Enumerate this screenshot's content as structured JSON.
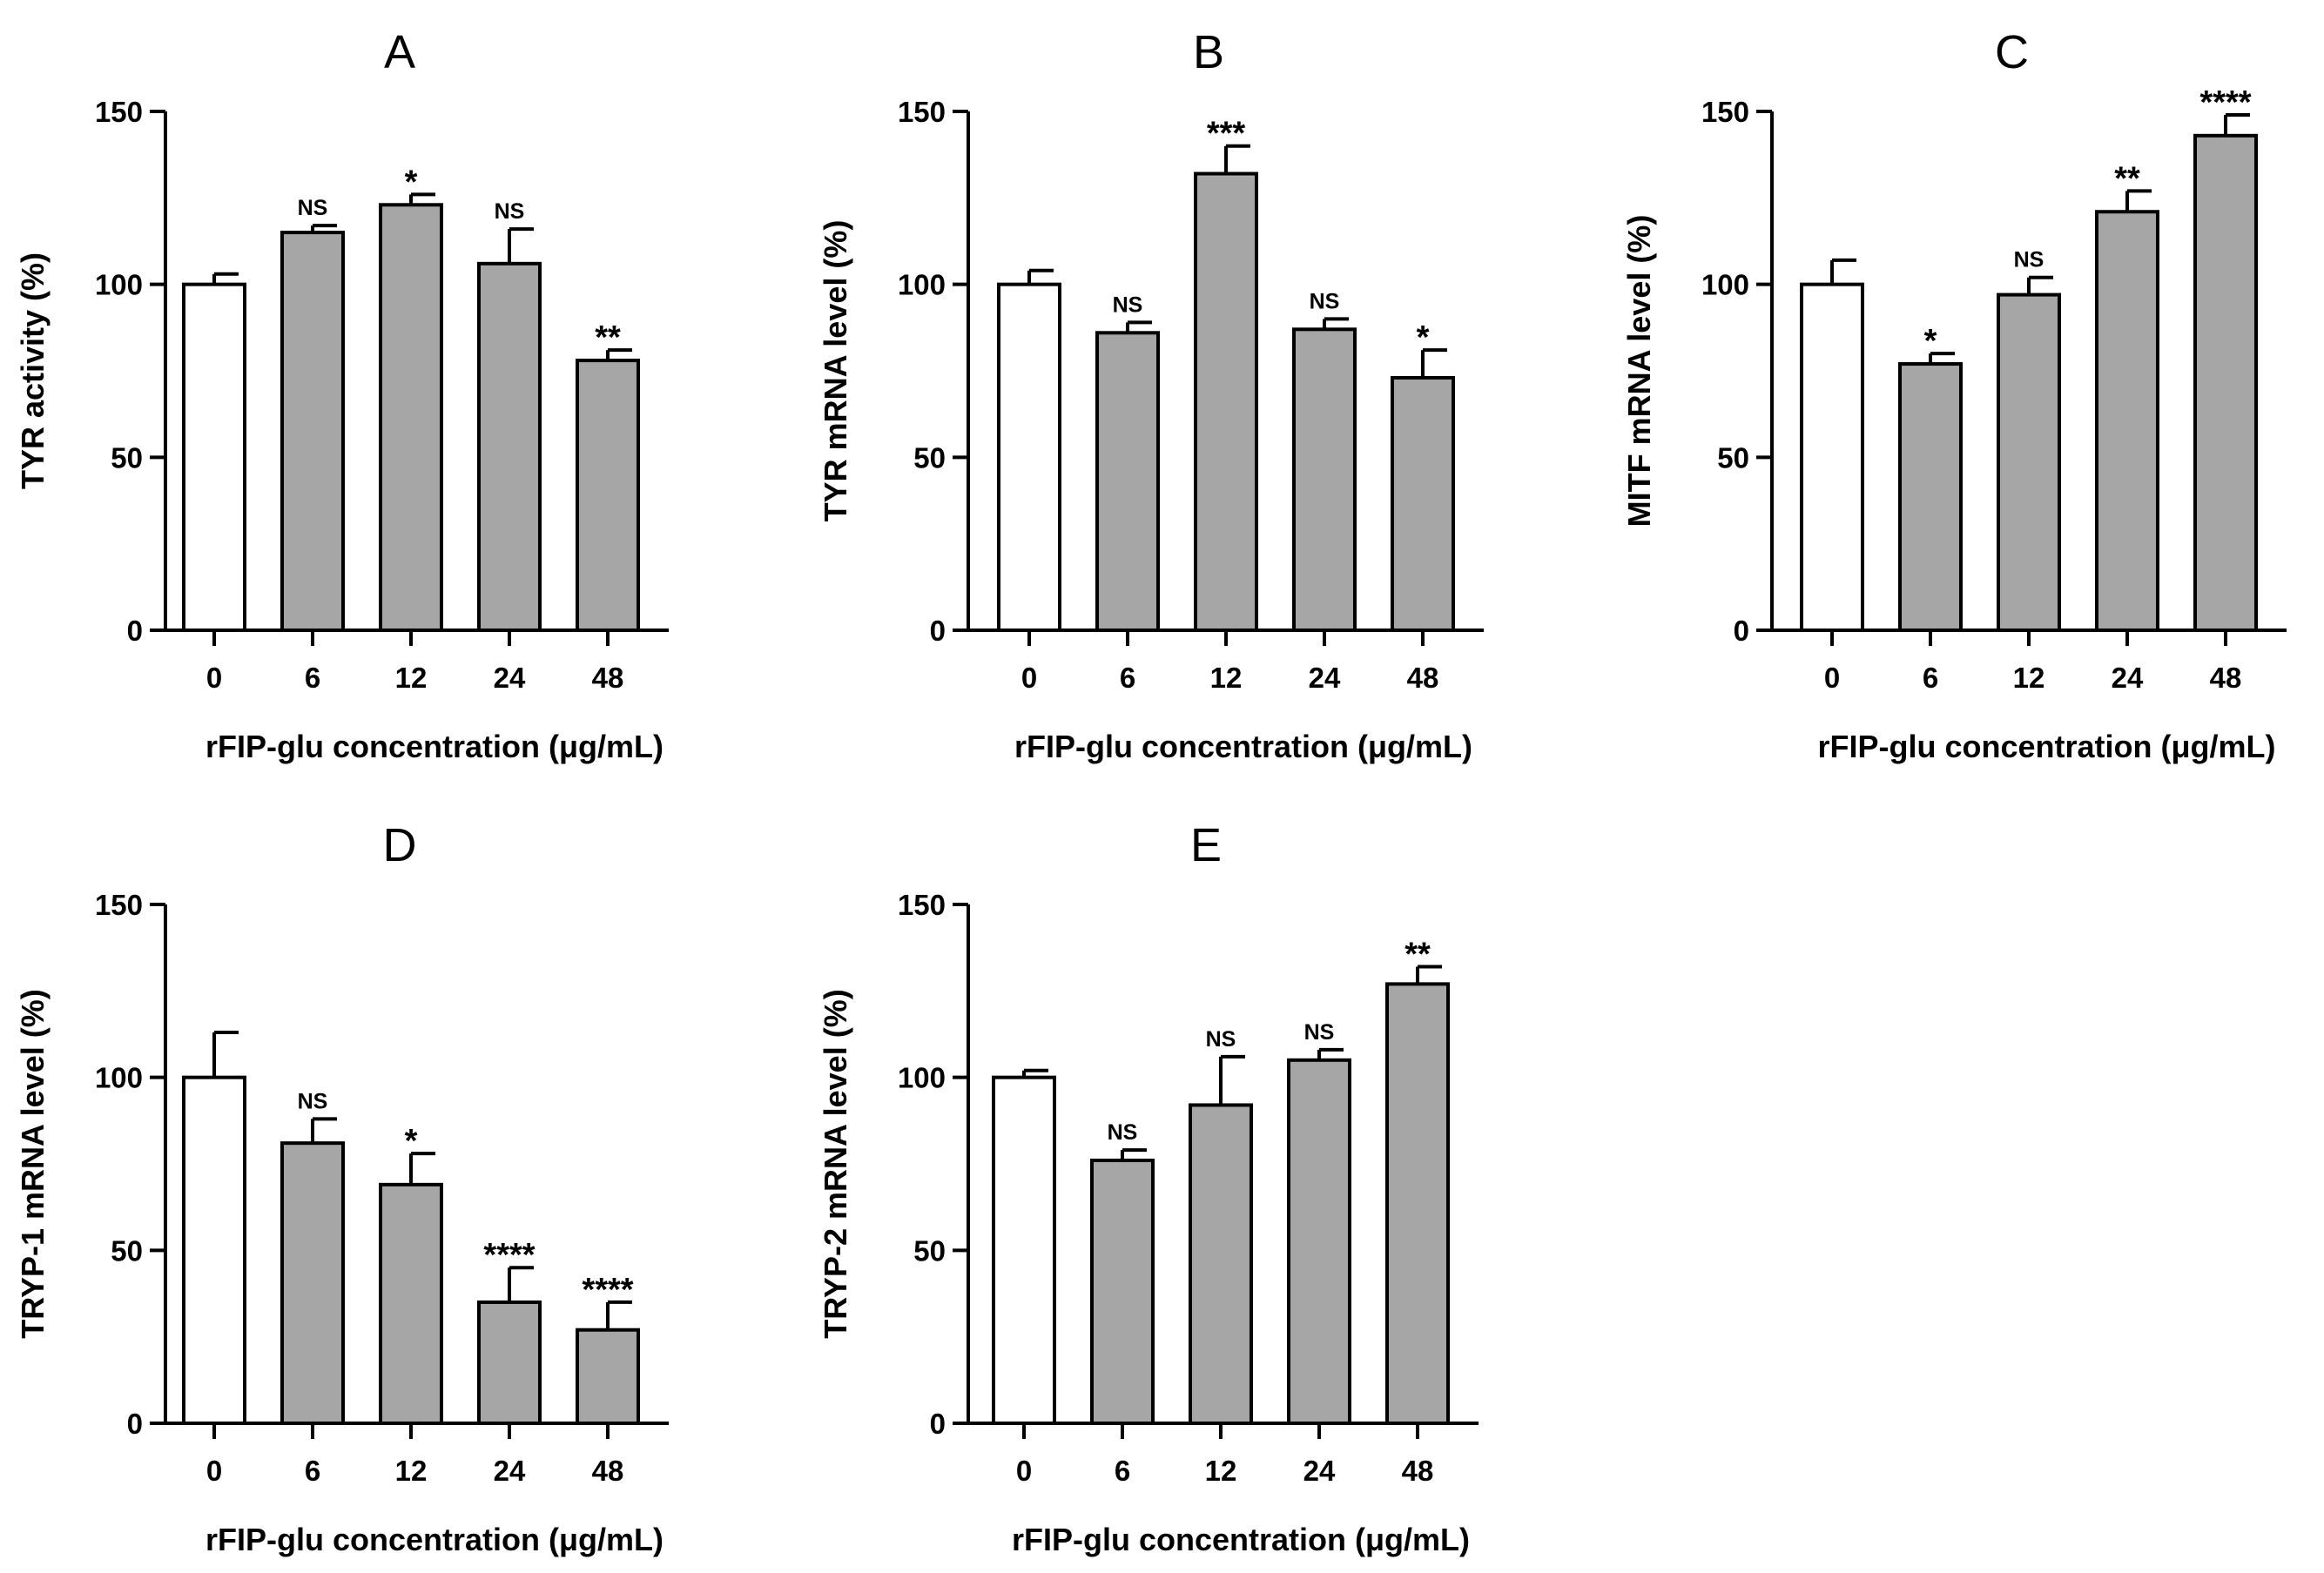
{
  "chart_data": [
    {
      "panel": "A",
      "type": "bar",
      "categories": [
        "0",
        "6",
        "12",
        "24",
        "48"
      ],
      "values": [
        100,
        115,
        123,
        106,
        78
      ],
      "errors": [
        3,
        2,
        3,
        10,
        3
      ],
      "significance": [
        "",
        "NS",
        "*",
        "NS",
        "**"
      ],
      "bar_colors": [
        "#ffffff",
        "#a6a6a6",
        "#a6a6a6",
        "#a6a6a6",
        "#a6a6a6"
      ],
      "xlabel": "rFIP-glu concentration (μg/mL)",
      "ylabel": "TYR activity (%)",
      "ylim": [
        0,
        150
      ],
      "yticks": [
        "0",
        "50",
        "100",
        "150"
      ],
      "grid": false
    },
    {
      "panel": "B",
      "type": "bar",
      "categories": [
        "0",
        "6",
        "12",
        "24",
        "48"
      ],
      "values": [
        100,
        86,
        132,
        87,
        73
      ],
      "errors": [
        4,
        3,
        8,
        3,
        8
      ],
      "significance": [
        "",
        "NS",
        "***",
        "NS",
        "*"
      ],
      "bar_colors": [
        "#ffffff",
        "#a6a6a6",
        "#a6a6a6",
        "#a6a6a6",
        "#a6a6a6"
      ],
      "xlabel": "rFIP-glu concentration (μg/mL)",
      "ylabel": "TYR mRNA level (%)",
      "ylim": [
        0,
        150
      ],
      "yticks": [
        "0",
        "50",
        "100",
        "150"
      ],
      "grid": false
    },
    {
      "panel": "C",
      "type": "bar",
      "categories": [
        "0",
        "6",
        "12",
        "24",
        "48"
      ],
      "values": [
        100,
        77,
        97,
        121,
        143
      ],
      "errors": [
        7,
        3,
        5,
        6,
        6
      ],
      "significance": [
        "",
        "*",
        "NS",
        "**",
        "****"
      ],
      "bar_colors": [
        "#ffffff",
        "#a6a6a6",
        "#a6a6a6",
        "#a6a6a6",
        "#a6a6a6"
      ],
      "xlabel": "rFIP-glu concentration (μg/mL)",
      "ylabel": "MITF mRNA level (%)",
      "ylim": [
        0,
        150
      ],
      "yticks": [
        "0",
        "50",
        "100",
        "150"
      ],
      "grid": false
    },
    {
      "panel": "D",
      "type": "bar",
      "categories": [
        "0",
        "6",
        "12",
        "24",
        "48"
      ],
      "values": [
        100,
        81,
        69,
        35,
        27
      ],
      "errors": [
        13,
        7,
        9,
        10,
        8
      ],
      "significance": [
        "",
        "NS",
        "*",
        "****",
        "****"
      ],
      "bar_colors": [
        "#ffffff",
        "#a6a6a6",
        "#a6a6a6",
        "#a6a6a6",
        "#a6a6a6"
      ],
      "xlabel": "rFIP-glu concentration (μg/mL)",
      "ylabel": "TRYP-1 mRNA level (%)",
      "ylim": [
        0,
        150
      ],
      "yticks": [
        "0",
        "50",
        "100",
        "150"
      ],
      "grid": false
    },
    {
      "panel": "E",
      "type": "bar",
      "categories": [
        "0",
        "6",
        "12",
        "24",
        "48"
      ],
      "values": [
        100,
        76,
        92,
        105,
        127
      ],
      "errors": [
        2,
        3,
        14,
        3,
        5
      ],
      "significance": [
        "",
        "NS",
        "NS",
        "NS",
        "**"
      ],
      "bar_colors": [
        "#ffffff",
        "#a6a6a6",
        "#a6a6a6",
        "#a6a6a6",
        "#a6a6a6"
      ],
      "xlabel": "rFIP-glu concentration (μg/mL)",
      "ylabel": "TRYP-2 mRNA level (%)",
      "ylim": [
        0,
        150
      ],
      "yticks": [
        "0",
        "50",
        "100",
        "150"
      ],
      "grid": false
    }
  ]
}
